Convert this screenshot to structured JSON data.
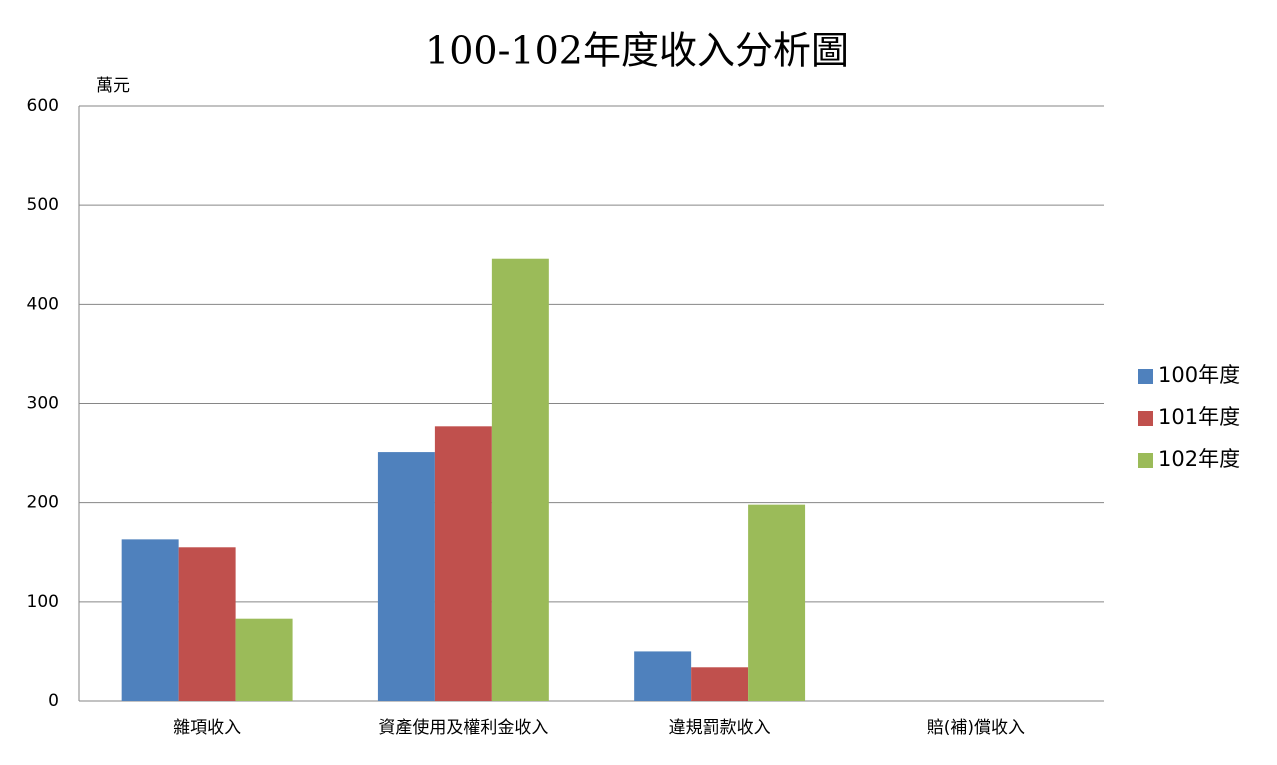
{
  "chart_data": {
    "type": "bar",
    "title": "100-102年度收入分析圖",
    "y_unit": "萬元",
    "categories": [
      "雜項收入",
      "資產使用及權利金收入",
      "違規罰款收入",
      "賠(補)償收入"
    ],
    "series": [
      {
        "name": "100年度",
        "color": "#4f81bd",
        "values": [
          163,
          251,
          50,
          0
        ]
      },
      {
        "name": "101年度",
        "color": "#c0504d",
        "values": [
          155,
          277,
          34,
          0
        ]
      },
      {
        "name": "102年度",
        "color": "#9bbb59",
        "values": [
          83,
          446,
          198,
          0
        ]
      }
    ],
    "ylim": [
      0,
      600
    ],
    "yticks": [
      0,
      100,
      200,
      300,
      400,
      500,
      600
    ],
    "grid": true,
    "legend": "right"
  }
}
